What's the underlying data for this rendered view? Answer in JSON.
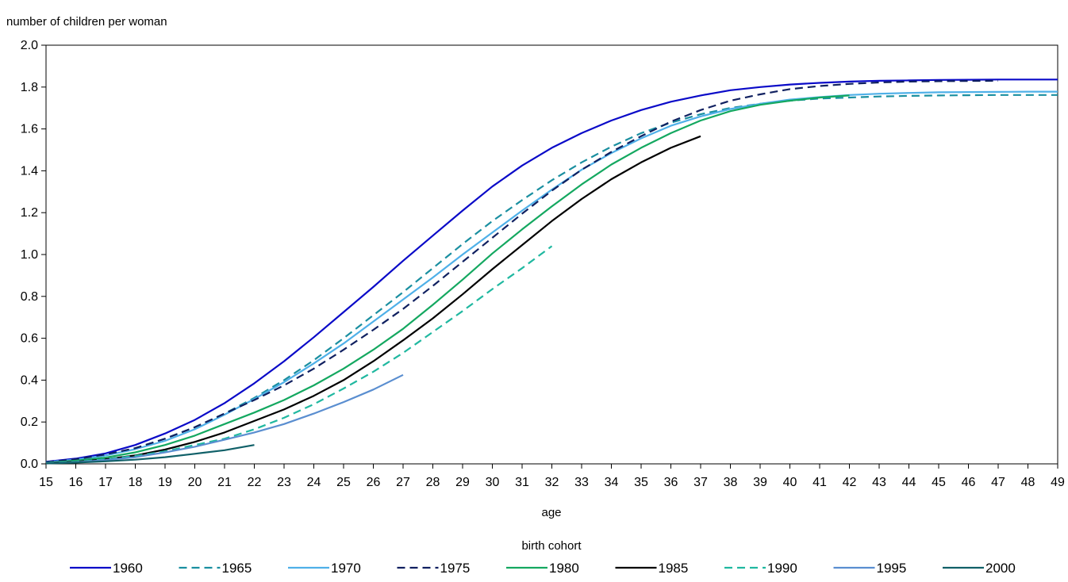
{
  "chart_data": {
    "type": "line",
    "title": "",
    "ylabel": "number of children per woman",
    "xlabel": "age",
    "legend_title": "birth cohort",
    "legend_position": "bottom",
    "xlim": [
      15,
      49
    ],
    "ylim": [
      0,
      2.0
    ],
    "x_ticks": [
      15,
      16,
      17,
      18,
      19,
      20,
      21,
      22,
      23,
      24,
      25,
      26,
      27,
      28,
      29,
      30,
      31,
      32,
      33,
      34,
      35,
      36,
      37,
      38,
      39,
      40,
      41,
      42,
      43,
      44,
      45,
      46,
      47,
      48,
      49
    ],
    "y_ticks": [
      0.0,
      0.2,
      0.4,
      0.6,
      0.8,
      1.0,
      1.2,
      1.4,
      1.6,
      1.8,
      2.0
    ],
    "grid": false,
    "series": [
      {
        "name": "1960",
        "color": "#0a0ac8",
        "dash": "solid",
        "x_start": 15,
        "values": [
          0.01,
          0.025,
          0.05,
          0.09,
          0.145,
          0.21,
          0.29,
          0.385,
          0.49,
          0.605,
          0.725,
          0.845,
          0.97,
          1.09,
          1.21,
          1.325,
          1.425,
          1.51,
          1.58,
          1.64,
          1.69,
          1.73,
          1.76,
          1.785,
          1.8,
          1.812,
          1.82,
          1.826,
          1.83,
          1.832,
          1.834,
          1.835,
          1.836,
          1.836,
          1.836
        ]
      },
      {
        "name": "1965",
        "color": "#1a8fa0",
        "dash": "dashed",
        "x_start": 15,
        "values": [
          0.008,
          0.02,
          0.04,
          0.075,
          0.12,
          0.175,
          0.24,
          0.315,
          0.4,
          0.495,
          0.6,
          0.71,
          0.82,
          0.935,
          1.05,
          1.16,
          1.26,
          1.355,
          1.44,
          1.515,
          1.58,
          1.63,
          1.67,
          1.7,
          1.72,
          1.735,
          1.745,
          1.75,
          1.755,
          1.758,
          1.76,
          1.761,
          1.762,
          1.762,
          1.762
        ]
      },
      {
        "name": "1970",
        "color": "#4fb0e8",
        "dash": "solid",
        "x_start": 15,
        "values": [
          0.008,
          0.02,
          0.04,
          0.07,
          0.11,
          0.165,
          0.235,
          0.31,
          0.39,
          0.48,
          0.575,
          0.68,
          0.785,
          0.89,
          1.0,
          1.105,
          1.21,
          1.31,
          1.405,
          1.485,
          1.555,
          1.615,
          1.66,
          1.695,
          1.72,
          1.74,
          1.752,
          1.762,
          1.768,
          1.772,
          1.775,
          1.776,
          1.777,
          1.778,
          1.778
        ]
      },
      {
        "name": "1975",
        "color": "#102060",
        "dash": "dashed",
        "x_start": 15,
        "values": [
          0.008,
          0.022,
          0.045,
          0.075,
          0.12,
          0.175,
          0.24,
          0.305,
          0.375,
          0.455,
          0.545,
          0.64,
          0.74,
          0.85,
          0.965,
          1.08,
          1.195,
          1.305,
          1.405,
          1.49,
          1.565,
          1.635,
          1.69,
          1.735,
          1.765,
          1.79,
          1.805,
          1.815,
          1.822,
          1.826,
          1.828,
          1.829,
          1.83
        ]
      },
      {
        "name": "1980",
        "color": "#14a860",
        "dash": "solid",
        "x_start": 15,
        "values": [
          0.005,
          0.015,
          0.03,
          0.055,
          0.09,
          0.135,
          0.19,
          0.245,
          0.305,
          0.375,
          0.455,
          0.545,
          0.645,
          0.76,
          0.88,
          1.005,
          1.12,
          1.23,
          1.335,
          1.43,
          1.51,
          1.58,
          1.64,
          1.685,
          1.715,
          1.735,
          1.75,
          1.76
        ]
      },
      {
        "name": "1985",
        "color": "#000000",
        "dash": "solid",
        "x_start": 15,
        "values": [
          0.004,
          0.01,
          0.022,
          0.04,
          0.068,
          0.105,
          0.15,
          0.205,
          0.26,
          0.325,
          0.4,
          0.49,
          0.59,
          0.695,
          0.81,
          0.93,
          1.045,
          1.16,
          1.265,
          1.36,
          1.44,
          1.51,
          1.565
        ]
      },
      {
        "name": "1990",
        "color": "#20b8a0",
        "dash": "dashed",
        "x_start": 15,
        "values": [
          0.004,
          0.01,
          0.022,
          0.038,
          0.06,
          0.09,
          0.12,
          0.165,
          0.22,
          0.285,
          0.36,
          0.44,
          0.53,
          0.63,
          0.73,
          0.835,
          0.935,
          1.04
        ]
      },
      {
        "name": "1995",
        "color": "#5a8ed0",
        "dash": "solid",
        "x_start": 15,
        "values": [
          0.003,
          0.008,
          0.018,
          0.032,
          0.055,
          0.082,
          0.115,
          0.15,
          0.19,
          0.24,
          0.295,
          0.355,
          0.425
        ]
      },
      {
        "name": "2000",
        "color": "#106068",
        "dash": "solid",
        "x_start": 15,
        "values": [
          0.002,
          0.006,
          0.012,
          0.02,
          0.032,
          0.048,
          0.065,
          0.09
        ]
      }
    ]
  }
}
